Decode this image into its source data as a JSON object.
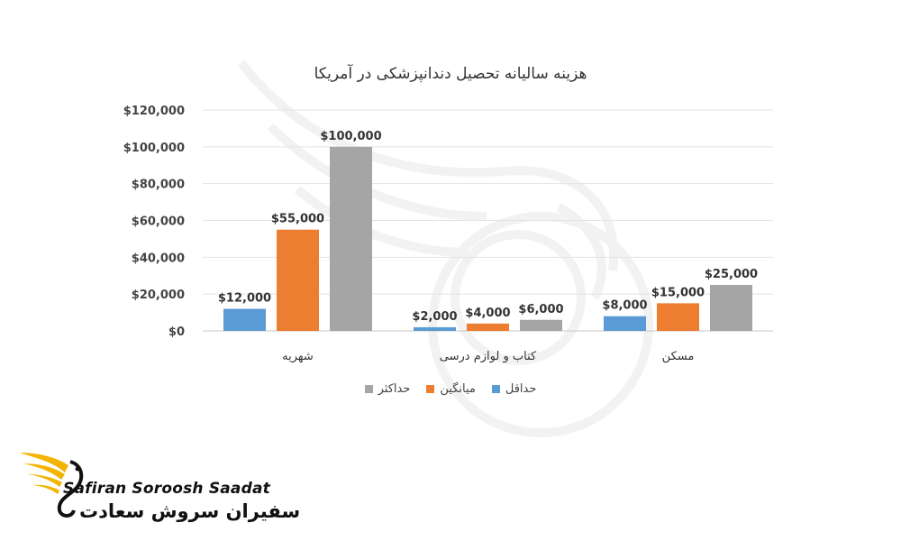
{
  "chart_data": {
    "type": "bar",
    "title": "هزینه سالیانه تحصیل دندانپزشکی در آمریکا",
    "categories": [
      "شهریه",
      "کتاب و لوازم درسی",
      "مسکن"
    ],
    "series": [
      {
        "name": "حداقل",
        "values": [
          12000,
          2000,
          8000
        ],
        "labels": [
          "$12,000",
          "$2,000",
          "$8,000"
        ]
      },
      {
        "name": "میانگین",
        "values": [
          55000,
          4000,
          15000
        ],
        "labels": [
          "$55,000",
          "$4,000",
          "$15,000"
        ]
      },
      {
        "name": "حداکثر",
        "values": [
          100000,
          6000,
          25000
        ],
        "labels": [
          "$100,000",
          "$6,000",
          "$25,000"
        ]
      }
    ],
    "ylim": [
      0,
      120000
    ],
    "yticks": [
      0,
      20000,
      40000,
      60000,
      80000,
      100000,
      120000
    ],
    "ytick_labels": [
      "$0",
      "$20,000",
      "$40,000",
      "$60,000",
      "$80,000",
      "$100,000",
      "$120,000"
    ],
    "grid": true,
    "legend_position": "bottom",
    "colors": [
      "#5b9bd5",
      "#ed7d31",
      "#a5a5a5"
    ]
  },
  "brand": {
    "name_en": "Safiran Soroosh Saadat",
    "name_fa": "سفیران سروش سعادت",
    "accent": "#f2b400"
  }
}
